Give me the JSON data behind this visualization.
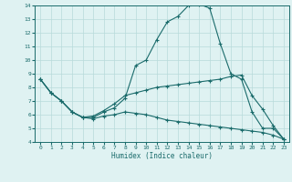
{
  "xlabel": "Humidex (Indice chaleur)",
  "xlim": [
    -0.5,
    23.5
  ],
  "ylim": [
    4,
    14
  ],
  "xticks": [
    0,
    1,
    2,
    3,
    4,
    5,
    6,
    7,
    8,
    9,
    10,
    11,
    12,
    13,
    14,
    15,
    16,
    17,
    18,
    19,
    20,
    21,
    22,
    23
  ],
  "yticks": [
    4,
    5,
    6,
    7,
    8,
    9,
    10,
    11,
    12,
    13,
    14
  ],
  "bg_color": "#dff2f2",
  "line_color": "#1a6b6b",
  "grid_color": "#b8dada",
  "line1_y": [
    8.6,
    7.6,
    7.0,
    6.2,
    5.8,
    5.8,
    6.2,
    6.5,
    7.2,
    9.6,
    10.0,
    11.5,
    12.8,
    13.2,
    14.0,
    14.1,
    13.8,
    11.2,
    9.0,
    8.6,
    6.2,
    5.0,
    5.0,
    4.2
  ],
  "line2_y": [
    8.6,
    7.6,
    7.0,
    6.2,
    5.8,
    5.9,
    6.3,
    6.8,
    7.4,
    7.6,
    7.8,
    8.0,
    8.1,
    8.2,
    8.3,
    8.4,
    8.5,
    8.6,
    8.8,
    8.9,
    7.4,
    6.4,
    5.2,
    4.2
  ],
  "line3_y": [
    8.6,
    7.6,
    7.0,
    6.2,
    5.8,
    5.7,
    5.9,
    6.0,
    6.2,
    6.1,
    6.0,
    5.8,
    5.6,
    5.5,
    5.4,
    5.3,
    5.2,
    5.1,
    5.0,
    4.9,
    4.8,
    4.7,
    4.5,
    4.2
  ]
}
